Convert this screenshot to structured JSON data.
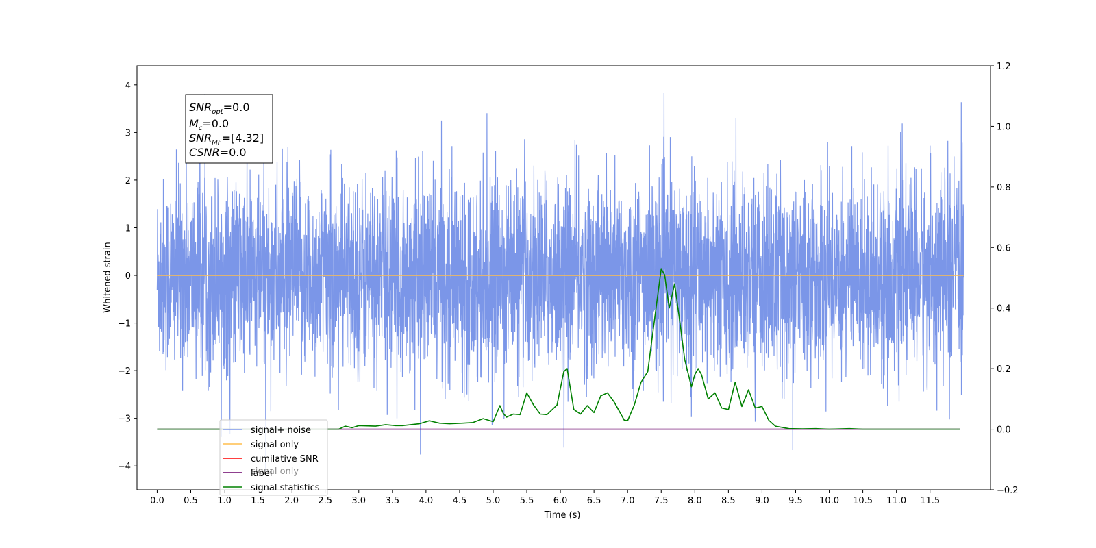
{
  "chart_data": {
    "type": "line",
    "xlabel": "Time (s)",
    "ylabel": "Whitened strain",
    "xlim": [
      -0.3,
      12.4
    ],
    "ylim": [
      -4.5,
      4.4
    ],
    "y2lim": [
      -0.2,
      1.2
    ],
    "x_ticks": [
      0.0,
      0.5,
      1.0,
      1.5,
      2.0,
      2.5,
      3.0,
      3.5,
      4.0,
      4.5,
      5.0,
      5.5,
      6.0,
      6.5,
      7.0,
      7.5,
      8.0,
      8.5,
      9.0,
      9.5,
      10.0,
      10.5,
      11.0,
      11.5
    ],
    "x_tick_labels": [
      "0.0",
      "0.5",
      "1.0",
      "1.5",
      "2.0",
      "2.5",
      "3.0",
      "3.5",
      "4.0",
      "4.5",
      "5.0",
      "5.5",
      "6.0",
      "6.5",
      "7.0",
      "7.5",
      "8.0",
      "8.5",
      "9.0",
      "9.5",
      "10.0",
      "10.5",
      "11.0",
      "11.5"
    ],
    "y_ticks": [
      -4,
      -3,
      -2,
      -1,
      0,
      1,
      2,
      3,
      4
    ],
    "y_tick_labels": [
      "−4",
      "−3",
      "−2",
      "−1",
      "0",
      "1",
      "2",
      "3",
      "4"
    ],
    "y2_ticks": [
      -0.2,
      0.0,
      0.2,
      0.4,
      0.6,
      0.8,
      1.0,
      1.2
    ],
    "y2_tick_labels": [
      "−0.2",
      "0.0",
      "0.2",
      "0.4",
      "0.6",
      "0.8",
      "1.0",
      "1.2"
    ],
    "grid": false,
    "legend_position": "lower-left",
    "series": [
      {
        "name": "signal+ noise",
        "axis": "left",
        "color": "#7b96e8",
        "style": "noise",
        "x_range": [
          0.0,
          12.0
        ],
        "std": 1.0,
        "min": -4.1,
        "max": 4.0
      },
      {
        "name": "signal only",
        "axis": "left",
        "color": "#ffbd4d",
        "x": [
          0.0,
          12.0
        ],
        "y": [
          0.0,
          0.0
        ]
      },
      {
        "name": "cumilative SNR",
        "axis": "right",
        "color": "#ff0000",
        "x": [],
        "y": []
      },
      {
        "name": "label",
        "axis": "right",
        "color": "#6a006a",
        "x": [
          0.0,
          11.95
        ],
        "y": [
          0.0,
          0.0
        ]
      },
      {
        "name": "signal statistics",
        "axis": "right",
        "color": "#008000",
        "x": [
          0.0,
          2.7,
          2.8,
          2.9,
          3.0,
          3.25,
          3.4,
          3.55,
          3.65,
          3.9,
          4.05,
          4.2,
          4.35,
          4.55,
          4.7,
          4.85,
          5.0,
          5.1,
          5.15,
          5.2,
          5.3,
          5.4,
          5.5,
          5.6,
          5.7,
          5.8,
          5.95,
          6.05,
          6.1,
          6.2,
          6.3,
          6.4,
          6.5,
          6.6,
          6.7,
          6.8,
          6.95,
          7.0,
          7.1,
          7.2,
          7.3,
          7.4,
          7.5,
          7.55,
          7.62,
          7.7,
          7.78,
          7.85,
          7.95,
          8.0,
          8.05,
          8.1,
          8.2,
          8.3,
          8.4,
          8.5,
          8.6,
          8.7,
          8.8,
          8.9,
          9.0,
          9.1,
          9.2,
          9.4,
          9.6,
          9.8,
          10.0,
          10.3,
          10.5,
          10.8,
          11.95
        ],
        "y": [
          0.0,
          0.0,
          0.01,
          0.005,
          0.012,
          0.01,
          0.015,
          0.012,
          0.012,
          0.018,
          0.028,
          0.02,
          0.018,
          0.02,
          0.022,
          0.035,
          0.025,
          0.078,
          0.052,
          0.04,
          0.05,
          0.048,
          0.12,
          0.08,
          0.05,
          0.048,
          0.08,
          0.19,
          0.2,
          0.065,
          0.05,
          0.078,
          0.055,
          0.11,
          0.12,
          0.09,
          0.03,
          0.028,
          0.08,
          0.155,
          0.19,
          0.36,
          0.53,
          0.51,
          0.4,
          0.48,
          0.35,
          0.23,
          0.14,
          0.18,
          0.2,
          0.18,
          0.1,
          0.12,
          0.07,
          0.065,
          0.155,
          0.075,
          0.13,
          0.07,
          0.075,
          0.03,
          0.01,
          0.002,
          0.001,
          0.002,
          0.0,
          0.002,
          0.0,
          0.0,
          0.0
        ]
      }
    ]
  },
  "annotation": {
    "lines": [
      {
        "base": "SNR",
        "sub": "opt",
        "rest": "=0.0"
      },
      {
        "base": "M",
        "sub": "c",
        "rest": "=0.0"
      },
      {
        "base": "SNR",
        "sub": "MF",
        "rest": "=[4.32]"
      },
      {
        "base": "CSNR",
        "sub": "",
        "rest": "=0.0"
      }
    ]
  },
  "legend_overlay_text": "signal only"
}
